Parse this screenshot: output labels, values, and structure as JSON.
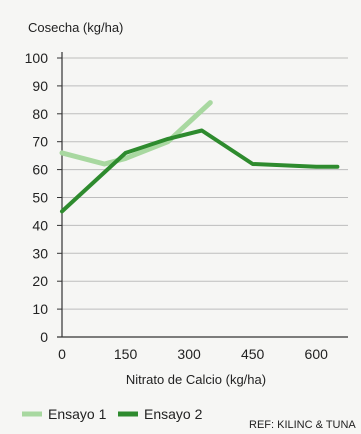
{
  "chart_data": {
    "type": "line",
    "ylabel": "Cosecha (kg/ha)",
    "xlabel": "Nitrato de Calcio (kg/ha)",
    "x_ticks": [
      "0",
      "150",
      "300",
      "450",
      "600"
    ],
    "x_tick_values": [
      0,
      150,
      300,
      450,
      600
    ],
    "y_ticks": [
      "0",
      "10",
      "20",
      "30",
      "40",
      "50",
      "60",
      "70",
      "80",
      "90",
      "100"
    ],
    "xlim": [
      0,
      675
    ],
    "ylim": [
      0,
      100
    ],
    "grid": "horizontal",
    "legend_position": "bottom",
    "series": [
      {
        "name": "Ensayo 1",
        "color": "#a8d8a0",
        "x": [
          0,
          100,
          150,
          250,
          350
        ],
        "y": [
          66,
          62,
          64,
          70,
          84
        ]
      },
      {
        "name": "Ensayo 2",
        "color": "#2e8b2e",
        "x": [
          0,
          150,
          250,
          330,
          450,
          600,
          650
        ],
        "y": [
          45,
          66,
          71,
          74,
          62,
          61,
          61
        ]
      }
    ],
    "source_note": "REF: KILINC & TUNA"
  }
}
